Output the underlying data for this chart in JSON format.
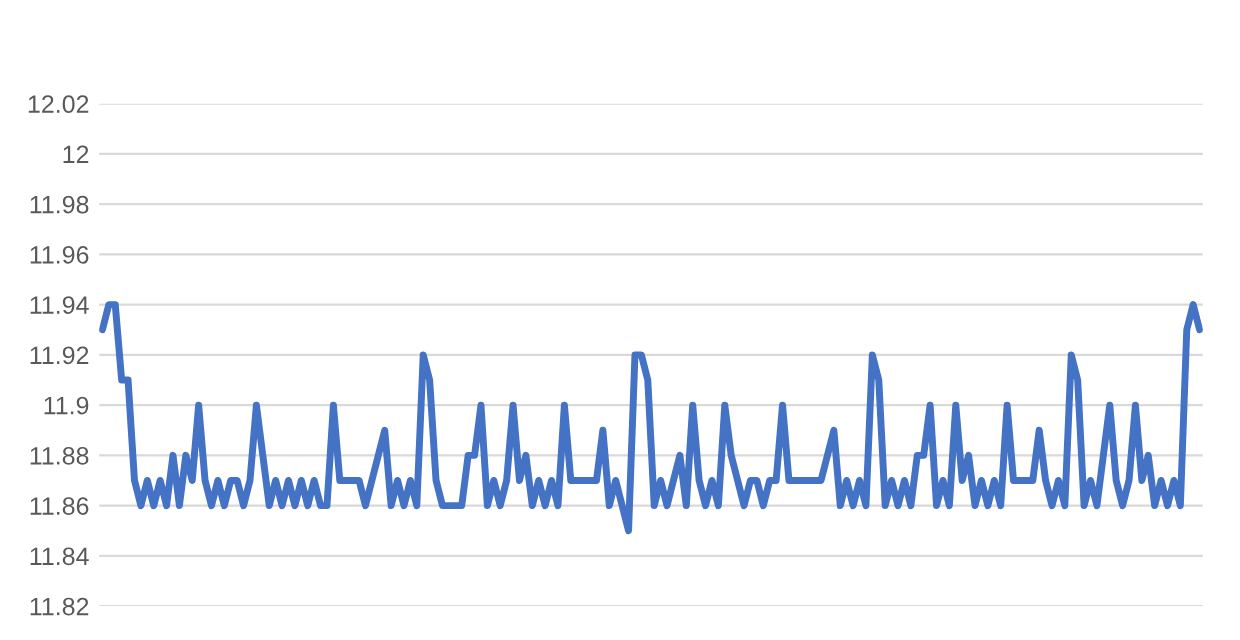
{
  "chart_data": {
    "type": "line",
    "categories": [
      null,
      null,
      null,
      null,
      null,
      null,
      null,
      null,
      null,
      null,
      null,
      null,
      null,
      null,
      null,
      null,
      null,
      null,
      null,
      null,
      null,
      null,
      null,
      null,
      null,
      null,
      null,
      null,
      null,
      null,
      null,
      null,
      null,
      null,
      null,
      null,
      null,
      null,
      null,
      null,
      null,
      null,
      null,
      null,
      null,
      null,
      null,
      null,
      null,
      null,
      null,
      null,
      null,
      null,
      null,
      null,
      null,
      null,
      null,
      null,
      null,
      null,
      null,
      null,
      null,
      null,
      null,
      null,
      null,
      null,
      null,
      null,
      null,
      null,
      null,
      null,
      null,
      null,
      null,
      null,
      null,
      null,
      null,
      null,
      null,
      null,
      null,
      null,
      null,
      null,
      null,
      null,
      null,
      null,
      null,
      null,
      null,
      null,
      null,
      null,
      null,
      null,
      null,
      null,
      null,
      null,
      null,
      null,
      null,
      null,
      null,
      null,
      null,
      null,
      null,
      null,
      null,
      null,
      null,
      null,
      null,
      null,
      null,
      null,
      null,
      null,
      null,
      null,
      null,
      null,
      null,
      null,
      null,
      null,
      null,
      null,
      null,
      null,
      null,
      null,
      null,
      null,
      null,
      null,
      null,
      null,
      null,
      null,
      null,
      null,
      null,
      null,
      null,
      null,
      null,
      null,
      null,
      null,
      null,
      null,
      null,
      null,
      null,
      null,
      null,
      null,
      null,
      null,
      null,
      null,
      null,
      null
    ],
    "series": [
      {
        "color": "#4472c4",
        "values": [
          11.93,
          11.94,
          11.94,
          11.91,
          11.91,
          11.87,
          11.86,
          11.87,
          11.86,
          11.87,
          11.86,
          11.88,
          11.86,
          11.88,
          11.87,
          11.9,
          11.87,
          11.86,
          11.87,
          11.86,
          11.87,
          11.87,
          11.86,
          11.87,
          11.9,
          11.88,
          11.86,
          11.87,
          11.86,
          11.87,
          11.86,
          11.87,
          11.86,
          11.87,
          11.86,
          11.86,
          11.9,
          11.87,
          11.87,
          11.87,
          11.87,
          11.86,
          11.87,
          11.88,
          11.89,
          11.86,
          11.87,
          11.86,
          11.87,
          11.86,
          11.92,
          11.91,
          11.87,
          11.86,
          11.86,
          11.86,
          11.86,
          11.88,
          11.88,
          11.9,
          11.86,
          11.87,
          11.86,
          11.87,
          11.9,
          11.87,
          11.88,
          11.86,
          11.87,
          11.86,
          11.87,
          11.86,
          11.9,
          11.87,
          11.87,
          11.87,
          11.87,
          11.87,
          11.89,
          11.86,
          11.87,
          11.86,
          11.85,
          11.92,
          11.92,
          11.91,
          11.86,
          11.87,
          11.86,
          11.87,
          11.88,
          11.86,
          11.9,
          11.87,
          11.86,
          11.87,
          11.86,
          11.9,
          11.88,
          11.87,
          11.86,
          11.87,
          11.87,
          11.86,
          11.87,
          11.87,
          11.9,
          11.87,
          11.87,
          11.87,
          11.87,
          11.87,
          11.87,
          11.88,
          11.89,
          11.86,
          11.87,
          11.86,
          11.87,
          11.86,
          11.92,
          11.91,
          11.86,
          11.87,
          11.86,
          11.87,
          11.86,
          11.88,
          11.88,
          11.9,
          11.86,
          11.87,
          11.86,
          11.9,
          11.87,
          11.88,
          11.86,
          11.87,
          11.86,
          11.87,
          11.86,
          11.9,
          11.87,
          11.87,
          11.87,
          11.87,
          11.89,
          11.87,
          11.86,
          11.87,
          11.86,
          11.92,
          11.91,
          11.86,
          11.87,
          11.86,
          11.88,
          11.9,
          11.87,
          11.86,
          11.87,
          11.9,
          11.87,
          11.88,
          11.86,
          11.87,
          11.86,
          11.87,
          11.86,
          11.93,
          11.94,
          11.93
        ]
      }
    ],
    "ylim": [
      11.82,
      12.02
    ],
    "yticks": [
      11.82,
      11.84,
      11.86,
      11.88,
      11.9,
      11.92,
      11.94,
      11.96,
      11.98,
      12,
      12.02
    ],
    "grid": "y",
    "tick_labels": "y"
  }
}
